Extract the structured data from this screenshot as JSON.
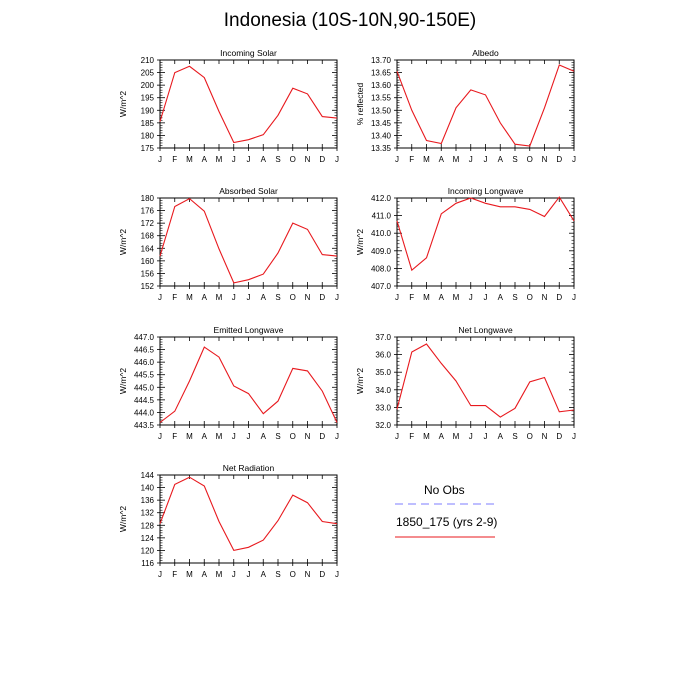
{
  "title": "Indonesia (10S-10N,90-150E)",
  "months": [
    "J",
    "F",
    "M",
    "A",
    "M",
    "J",
    "J",
    "A",
    "S",
    "O",
    "N",
    "D",
    "J"
  ],
  "colors": {
    "model": "#e8191e",
    "obs": "#7d7dff",
    "axis": "#000000"
  },
  "legend": {
    "obs_label": "No Obs",
    "model_label": "1850_175 (yrs 2-9)"
  },
  "chart_data": [
    {
      "type": "line",
      "title": "Incoming Solar",
      "ylabel": "W/m^2",
      "ylim": [
        175,
        210
      ],
      "yticks": [
        175,
        180,
        185,
        190,
        195,
        200,
        205,
        210
      ],
      "ytick_labels": [
        "175",
        "180",
        "185",
        "190",
        "195",
        "200",
        "205",
        "210"
      ],
      "series": [
        {
          "name": "1850_175 (yrs 2-9)",
          "values": [
            185.5,
            205.0,
            207.5,
            203.0,
            189.5,
            177.2,
            178.3,
            180.3,
            188.0,
            198.8,
            196.5,
            187.5,
            186.9
          ]
        }
      ]
    },
    {
      "type": "line",
      "title": "Albedo",
      "ylabel": "% reflected",
      "ylim": [
        13.35,
        13.7
      ],
      "yticks": [
        13.35,
        13.4,
        13.45,
        13.5,
        13.55,
        13.6,
        13.65,
        13.7
      ],
      "ytick_labels": [
        "13.35",
        "13.40",
        "13.45",
        "13.50",
        "13.55",
        "13.60",
        "13.65",
        "13.70"
      ],
      "series": [
        {
          "name": "1850_175 (yrs 2-9)",
          "values": [
            13.655,
            13.5,
            13.38,
            13.368,
            13.51,
            13.581,
            13.561,
            13.45,
            13.365,
            13.358,
            13.51,
            13.68,
            13.655
          ]
        }
      ]
    },
    {
      "type": "line",
      "title": "Absorbed Solar",
      "ylabel": "W/m^2",
      "ylim": [
        152,
        180
      ],
      "yticks": [
        152,
        156,
        160,
        164,
        168,
        172,
        176,
        180
      ],
      "ytick_labels": [
        "152",
        "156",
        "160",
        "164",
        "168",
        "172",
        "176",
        "180"
      ],
      "series": [
        {
          "name": "1850_175 (yrs 2-9)",
          "values": [
            161.5,
            177.3,
            179.8,
            175.8,
            163.8,
            153.0,
            154.0,
            155.8,
            162.5,
            172.0,
            170.0,
            162.0,
            161.5
          ]
        }
      ]
    },
    {
      "type": "line",
      "title": "Incoming Longwave",
      "ylabel": "W/m^2",
      "ylim": [
        407.0,
        412.0
      ],
      "yticks": [
        407,
        408,
        409,
        410,
        411,
        412
      ],
      "ytick_labels": [
        "407.0",
        "408.0",
        "409.0",
        "410.0",
        "411.0",
        "412.0"
      ],
      "series": [
        {
          "name": "1850_175 (yrs 2-9)",
          "values": [
            410.7,
            407.9,
            408.6,
            411.1,
            411.7,
            412.0,
            411.7,
            411.5,
            411.5,
            411.35,
            410.95,
            412.05,
            410.7
          ]
        }
      ]
    },
    {
      "type": "line",
      "title": "Emitted Longwave",
      "ylabel": "W/m^2",
      "ylim": [
        443.5,
        447.0
      ],
      "yticks": [
        443.5,
        444.0,
        444.5,
        445.0,
        445.5,
        446.0,
        446.5,
        447.0
      ],
      "ytick_labels": [
        "443.5",
        "444.0",
        "444.5",
        "445.0",
        "445.5",
        "446.0",
        "446.5",
        "447.0"
      ],
      "series": [
        {
          "name": "1850_175 (yrs 2-9)",
          "values": [
            443.6,
            444.05,
            445.25,
            446.6,
            446.2,
            445.05,
            444.75,
            443.95,
            444.45,
            445.75,
            445.65,
            444.85,
            443.6
          ]
        }
      ]
    },
    {
      "type": "line",
      "title": "Net Longwave",
      "ylabel": "W/m^2",
      "ylim": [
        32.0,
        37.0
      ],
      "yticks": [
        32,
        33,
        34,
        35,
        36,
        37
      ],
      "ytick_labels": [
        "32.0",
        "33.0",
        "34.0",
        "35.0",
        "36.0",
        "37.0"
      ],
      "series": [
        {
          "name": "1850_175 (yrs 2-9)",
          "values": [
            32.9,
            36.15,
            36.6,
            35.5,
            34.5,
            33.1,
            33.1,
            32.45,
            32.95,
            34.45,
            34.7,
            32.75,
            32.85
          ]
        }
      ]
    },
    {
      "type": "line",
      "title": "Net Radiation",
      "ylabel": "W/m^2",
      "ylim": [
        116,
        144
      ],
      "yticks": [
        116,
        120,
        124,
        128,
        132,
        136,
        140,
        144
      ],
      "ytick_labels": [
        "116",
        "120",
        "124",
        "128",
        "132",
        "136",
        "140",
        "144"
      ],
      "series": [
        {
          "name": "1850_175 (yrs 2-9)",
          "values": [
            128.5,
            141.0,
            143.3,
            140.5,
            129.2,
            120.0,
            121.0,
            123.3,
            129.5,
            137.6,
            135.2,
            129.2,
            128.5
          ]
        }
      ]
    }
  ]
}
